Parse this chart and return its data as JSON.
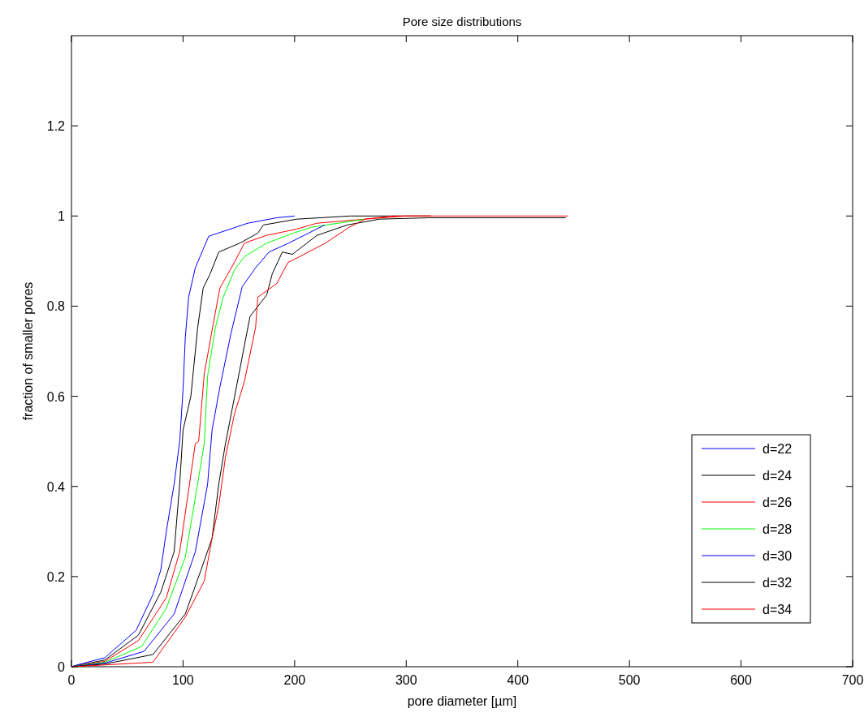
{
  "chart_data": {
    "type": "line",
    "title": "Pore size distributions",
    "xlabel": "pore diameter [µm]",
    "ylabel": "fraction of smaller pores",
    "xlim": [
      0,
      700
    ],
    "ylim": [
      0,
      1.4
    ],
    "xticks": [
      0,
      100,
      200,
      300,
      400,
      500,
      600,
      700
    ],
    "yticks": [
      0,
      0.2,
      0.4,
      0.6,
      0.8,
      1,
      1.2
    ],
    "grid": false,
    "legend": "bottom right",
    "line_style": "solid",
    "marker": "none",
    "series": [
      {
        "name": "d=22",
        "color": "#0000ff",
        "x": [
          0,
          5,
          30,
          58,
          73,
          80,
          85,
          92,
          97,
          100,
          102,
          105,
          111,
          118,
          123,
          158,
          184,
          200
        ],
        "values": [
          0,
          0.004,
          0.02,
          0.081,
          0.16,
          0.214,
          0.3,
          0.405,
          0.5,
          0.615,
          0.73,
          0.82,
          0.885,
          0.926,
          0.955,
          0.984,
          0.996,
          1
        ]
      },
      {
        "name": "d=24",
        "color": "#000000",
        "x": [
          0,
          30,
          60,
          80,
          92,
          97,
          100,
          107,
          113,
          118,
          124,
          132,
          151,
          167,
          172,
          202,
          250,
          322
        ],
        "values": [
          0,
          0.015,
          0.07,
          0.165,
          0.255,
          0.405,
          0.525,
          0.6,
          0.75,
          0.84,
          0.87,
          0.92,
          0.94,
          0.962,
          0.98,
          0.993,
          1,
          1
        ]
      },
      {
        "name": "d=26",
        "color": "#ff0000",
        "x": [
          0,
          30,
          60,
          85,
          97,
          104,
          111,
          114,
          119,
          127,
          133,
          146,
          155,
          175,
          202,
          220,
          263,
          300,
          322
        ],
        "values": [
          0,
          0.012,
          0.058,
          0.153,
          0.255,
          0.375,
          0.495,
          0.5,
          0.65,
          0.76,
          0.84,
          0.897,
          0.94,
          0.957,
          0.971,
          0.984,
          0.993,
          1,
          1
        ]
      },
      {
        "name": "d=28",
        "color": "#00ff00",
        "x": [
          0,
          30,
          63,
          85,
          102,
          111,
          119,
          122,
          129,
          136,
          146,
          155,
          175,
          199,
          215,
          263
        ],
        "values": [
          0,
          0.01,
          0.045,
          0.13,
          0.243,
          0.375,
          0.495,
          0.645,
          0.753,
          0.82,
          0.88,
          0.91,
          0.94,
          0.962,
          0.975,
          0.993
        ]
      },
      {
        "name": "d=30",
        "color": "#0000ff",
        "x": [
          0,
          30,
          65,
          92,
          111,
          122,
          126,
          133,
          143,
          153,
          165,
          177,
          194,
          227
        ],
        "values": [
          0,
          0.008,
          0.034,
          0.117,
          0.255,
          0.405,
          0.525,
          0.62,
          0.74,
          0.843,
          0.885,
          0.92,
          0.939,
          0.98
        ]
      },
      {
        "name": "d=32",
        "color": "#000000",
        "x": [
          0,
          30,
          73,
          102,
          116,
          126,
          132,
          138,
          146,
          160,
          175,
          180,
          189,
          198,
          220,
          247,
          276,
          320,
          443
        ],
        "values": [
          0,
          0.006,
          0.027,
          0.117,
          0.214,
          0.285,
          0.405,
          0.495,
          0.597,
          0.777,
          0.825,
          0.872,
          0.92,
          0.915,
          0.957,
          0.98,
          0.993,
          0.996,
          0.996
        ]
      },
      {
        "name": "d=34",
        "color": "#ff0000",
        "x": [
          0,
          30,
          73,
          102,
          119,
          126,
          132,
          138,
          146,
          155,
          165,
          167,
          184,
          194,
          203,
          227,
          249,
          263,
          288,
          445
        ],
        "values": [
          0,
          0.004,
          0.01,
          0.11,
          0.19,
          0.285,
          0.357,
          0.465,
          0.56,
          0.633,
          0.753,
          0.82,
          0.85,
          0.897,
          0.908,
          0.939,
          0.975,
          0.993,
          1,
          1
        ]
      }
    ]
  }
}
